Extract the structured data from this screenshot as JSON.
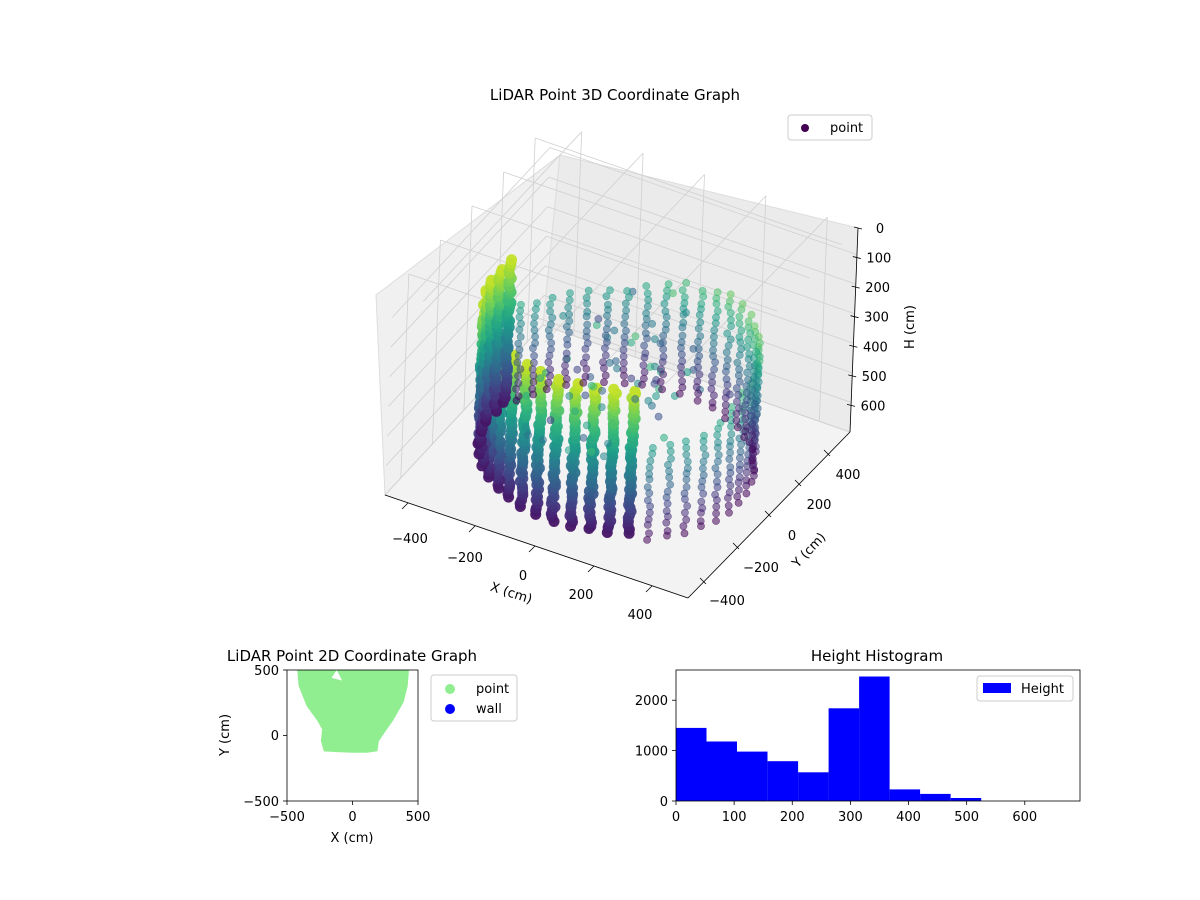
{
  "colors": {
    "viridis_dark": "#440154",
    "viridis_mid": "#21918c",
    "viridis_light": "#fde725",
    "point_2d": "#90ee90",
    "wall_2d": "#0000ff",
    "histogram": "#0000ff"
  },
  "chart_data": [
    {
      "type": "scatter",
      "projection": "3d",
      "title": "LiDAR Point 3D Coordinate Graph",
      "xlabel": "X (cm)",
      "ylabel": "Y (cm)",
      "zlabel": "H (cm)",
      "xticks": [
        "−400",
        "−200",
        "0",
        "200",
        "400"
      ],
      "yticks": [
        "−400",
        "−200",
        "0",
        "200",
        "400"
      ],
      "zticks": [
        "0",
        "100",
        "200",
        "300",
        "400",
        "500",
        "600"
      ],
      "xlim": [
        -500,
        500
      ],
      "ylim": [
        -500,
        500
      ],
      "zlim": [
        0,
        690
      ],
      "z_inverted": true,
      "grid": true,
      "colormap": "viridis",
      "legend": {
        "placement": "top-right",
        "entries": [
          "point"
        ]
      },
      "series": [
        {
          "name": "point",
          "shape": "ring of vertical point columns",
          "radius_cm": 400,
          "height_range": [
            0,
            520
          ]
        }
      ]
    },
    {
      "type": "scatter",
      "title": "LiDAR Point 2D Coordinate Graph",
      "xlabel": "X (cm)",
      "ylabel": "Y (cm)",
      "xticks": [
        "−500",
        "0",
        "500"
      ],
      "yticks": [
        "−500",
        "0",
        "500"
      ],
      "xlim": [
        -500,
        500
      ],
      "ylim": [
        -500,
        500
      ],
      "legend": {
        "placement": "outside-right",
        "entries": [
          "point",
          "wall"
        ]
      },
      "series": [
        {
          "name": "point",
          "color": "#90ee90",
          "region": "filled blob x -420..420, y -120..500"
        },
        {
          "name": "wall",
          "color": "#0000ff",
          "points": []
        }
      ]
    },
    {
      "type": "bar",
      "title": "Height Histogram",
      "xlabel": "",
      "ylabel": "",
      "xticks": [
        "0",
        "100",
        "200",
        "300",
        "400",
        "500",
        "600"
      ],
      "yticks": [
        "0",
        "1000",
        "2000"
      ],
      "xlim": [
        0,
        695
      ],
      "ylim": [
        0,
        2600
      ],
      "legend": {
        "placement": "top-right",
        "entries": [
          "Height"
        ]
      },
      "bin_edges": [
        0,
        52.5,
        105,
        157.5,
        210,
        262.5,
        315,
        367.5,
        420,
        472.5,
        525,
        577.5,
        630,
        682.5
      ],
      "series": [
        {
          "name": "Height",
          "values": [
            1450,
            1180,
            980,
            790,
            570,
            1840,
            2470,
            230,
            140,
            60,
            0,
            0,
            0
          ]
        }
      ]
    }
  ]
}
